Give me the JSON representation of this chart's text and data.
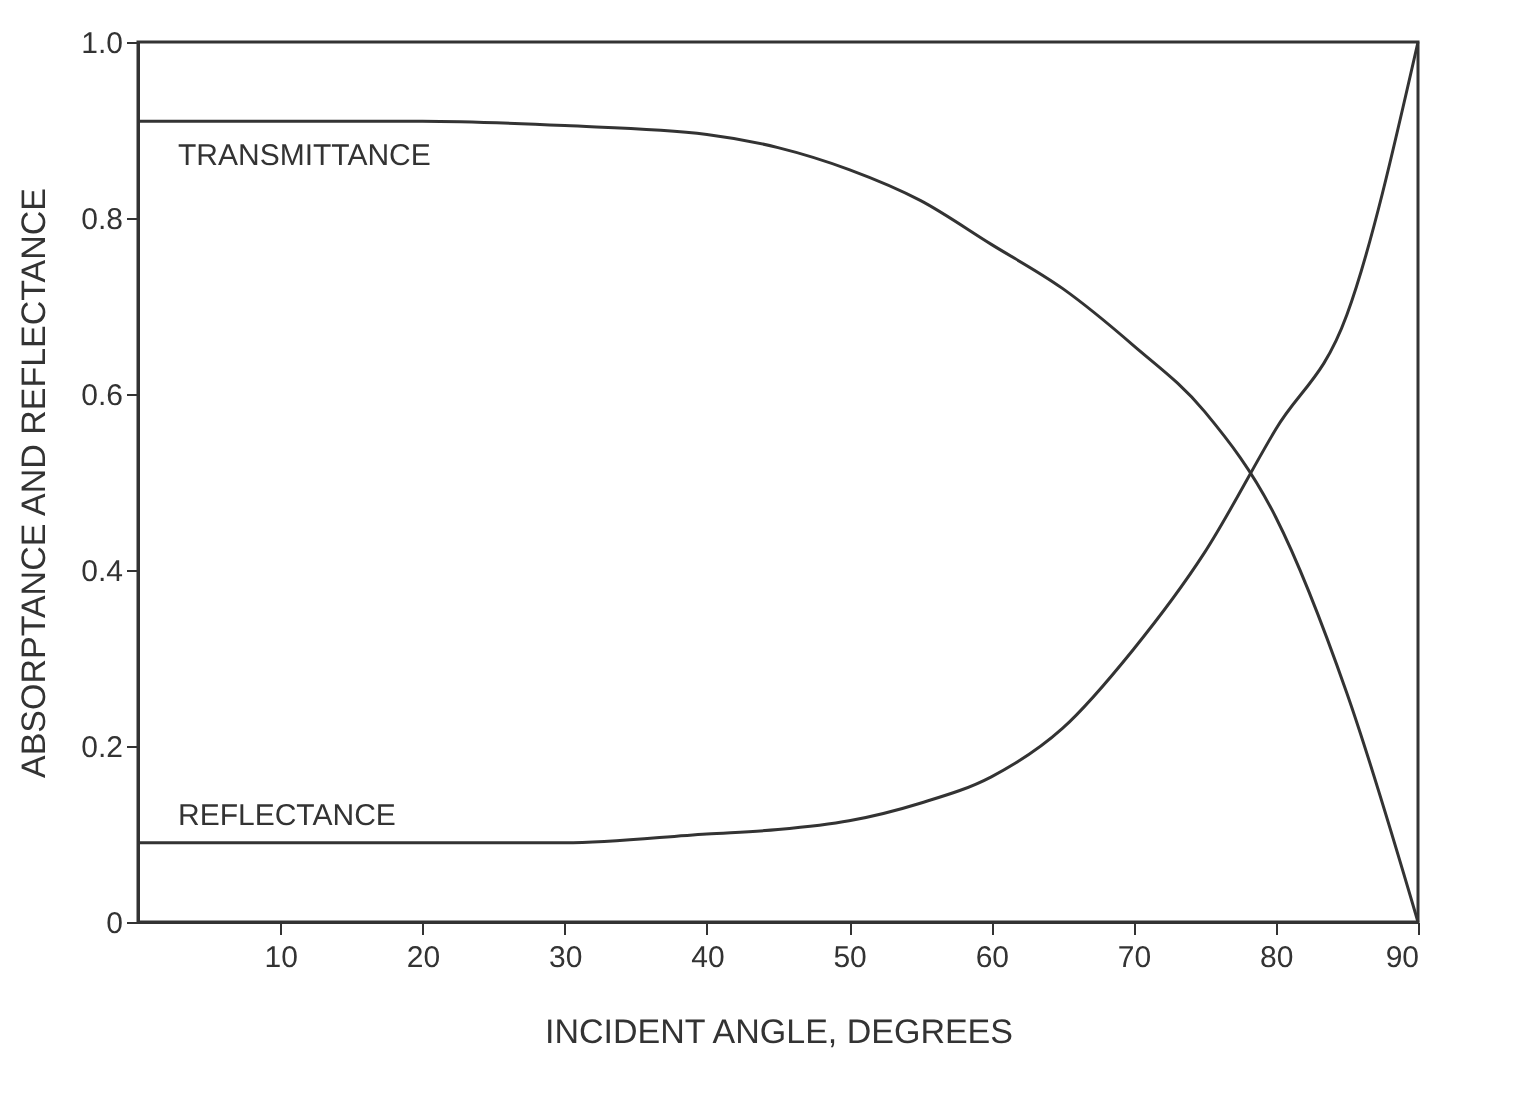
{
  "chart_data": {
    "type": "line",
    "xlabel": "INCIDENT ANGLE, DEGREES",
    "ylabel": "ABSORPTANCE AND REFLECTANCE",
    "x": [
      0,
      10,
      20,
      30,
      40,
      45,
      50,
      55,
      60,
      65,
      70,
      75,
      80,
      85,
      90
    ],
    "series": [
      {
        "name": "TRANSMITTANCE",
        "color": "#333333",
        "values": [
          0.91,
          0.91,
          0.91,
          0.905,
          0.895,
          0.88,
          0.855,
          0.82,
          0.77,
          0.72,
          0.655,
          0.58,
          0.46,
          0.26,
          0
        ]
      },
      {
        "name": "REFLECTANCE",
        "color": "#333333",
        "values": [
          0.09,
          0.09,
          0.09,
          0.09,
          0.1,
          0.105,
          0.115,
          0.135,
          0.165,
          0.22,
          0.31,
          0.42,
          0.56,
          0.69,
          1.0
        ]
      }
    ],
    "xlim": [
      0,
      90
    ],
    "xticks": [
      10,
      20,
      30,
      40,
      50,
      60,
      70,
      80,
      90
    ],
    "ylim": [
      0,
      1
    ],
    "yticks": [
      0,
      0.2,
      0.4,
      0.6,
      0.8,
      {
        "value": 1,
        "label": "1.0"
      }
    ],
    "grid": false,
    "marker": "none",
    "line_style": "solid"
  }
}
